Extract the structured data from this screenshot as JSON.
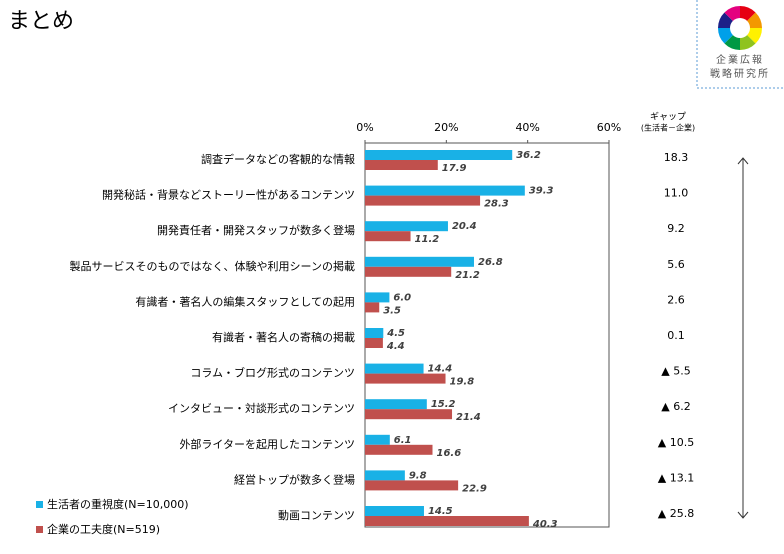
{
  "slide": {
    "title": "まとめ",
    "logo_text": [
      "企業広報",
      "戦略研究所"
    ]
  },
  "chart_data": {
    "type": "hbar",
    "categories": [
      "調査データなどの客観的な情報",
      "開発秘話・背景などストーリー性があるコンテンツ",
      "開発責任者・開発スタッフが数多く登場",
      "製品サービスそのものではなく、体験や利用シーンの掲載",
      "有識者・著名人の編集スタッフとしての起用",
      "有識者・著名人の寄稿の掲載",
      "コラム・ブログ形式のコンテンツ",
      "インタビュー・対談形式のコンテンツ",
      "外部ライターを起用したコンテンツ",
      "経営トップが数多く登場",
      "動画コンテンツ"
    ],
    "series": [
      {
        "name": "生活者の重視度(N=10,000)",
        "color": "#19b1e6",
        "values": [
          36.2,
          39.3,
          20.4,
          26.8,
          6.0,
          4.5,
          14.4,
          15.2,
          6.1,
          9.8,
          14.5
        ],
        "value_labels": [
          "36.2",
          "39.3",
          "20.4",
          "26.8",
          "6.0",
          "4.5",
          "14.4",
          "15.2",
          "6.1",
          "9.8",
          "14.5"
        ]
      },
      {
        "name": "企業の工夫度(N=519)",
        "color": "#c0504d",
        "values": [
          17.9,
          28.3,
          11.2,
          21.2,
          3.5,
          4.4,
          19.8,
          21.4,
          16.6,
          22.9,
          40.3
        ],
        "value_labels": [
          "17.9",
          "28.3",
          "11.2",
          "21.2",
          "3.5",
          "4.4",
          "19.8",
          "21.4",
          "16.6",
          "22.9",
          "40.3"
        ]
      }
    ],
    "xlim": [
      0,
      60
    ],
    "xticks": [
      {
        "value": 0,
        "label": "0%"
      },
      {
        "value": 20,
        "label": "20%"
      },
      {
        "value": 40,
        "label": "40%"
      },
      {
        "value": 60,
        "label": "60%"
      }
    ],
    "gap_column": {
      "header": "ギャップ",
      "subheader": "(生活者－企業)",
      "labels": [
        "18.3",
        "11.0",
        "9.2",
        "5.6",
        "2.6",
        "0.1",
        "▲ 5.5",
        "▲ 6.2",
        "▲ 10.5",
        "▲ 13.1",
        "▲ 25.8"
      ]
    }
  }
}
